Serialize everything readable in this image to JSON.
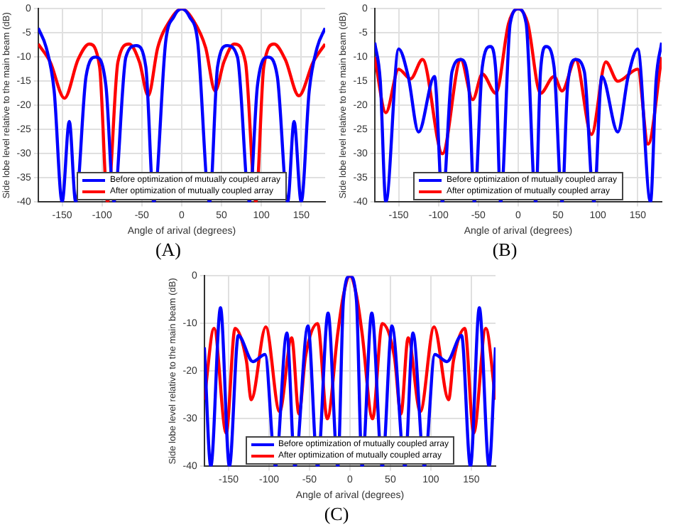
{
  "chart_data": [
    {
      "type": "line",
      "xlabel": "Angle of arival (degrees)",
      "ylabel": "Side lobe level relative to the main beam (dB)",
      "annotations": [
        "(A)"
      ],
      "xlim": [
        -180,
        180
      ],
      "ylim": [
        -40,
        0
      ],
      "xticks": [
        -150,
        -100,
        -50,
        0,
        50,
        100,
        150
      ],
      "yticks": [
        -40,
        -35,
        -30,
        -25,
        -20,
        -15,
        -10,
        -5,
        0
      ],
      "grid": true,
      "legend": "bottom",
      "marker": "none",
      "line_style": "solid",
      "series": [
        {
          "name": "Before optimization of mutually coupled array",
          "color": "#0000ff",
          "x": [
            -180,
            -170,
            -160,
            -150,
            -141,
            -133,
            -120,
            -108,
            -95,
            -85,
            -70,
            -57,
            -45,
            -35,
            -20,
            -10,
            0,
            10,
            20,
            35,
            45,
            57,
            70,
            85,
            95,
            108,
            120,
            133,
            141,
            150,
            160,
            170,
            180
          ],
          "values": [
            -4,
            -8,
            -17,
            -40,
            -23.3,
            -40,
            -14,
            -10,
            -16,
            -40,
            -10,
            -7.6,
            -12,
            -40,
            -6.7,
            -1.7,
            0,
            -1.7,
            -6.7,
            -40,
            -12,
            -7.6,
            -10,
            -40,
            -16,
            -10,
            -14,
            -40,
            -23.3,
            -40,
            -17,
            -8,
            -4
          ]
        },
        {
          "name": "After optimization of mutually coupled array",
          "color": "#ff0000",
          "x": [
            -180,
            -165,
            -147,
            -130,
            -116,
            -103,
            -93,
            -80,
            -66,
            -53,
            -42,
            -30,
            -15,
            0,
            15,
            30,
            42,
            53,
            66,
            80,
            93,
            103,
            116,
            130,
            147,
            165,
            180
          ],
          "values": [
            -7.3,
            -11,
            -18.5,
            -10.5,
            -7.3,
            -12,
            -40,
            -11,
            -7.3,
            -11,
            -18,
            -8,
            -2.5,
            0,
            -2.5,
            -8,
            -17,
            -11,
            -7.3,
            -11,
            -40,
            -12,
            -7.3,
            -10.5,
            -18,
            -11,
            -7.3
          ]
        }
      ]
    },
    {
      "type": "line",
      "xlabel": "Angle of arival (degrees)",
      "ylabel": "Side lobe level relative to the main beam (dB)",
      "annotations": [
        "(B)"
      ],
      "xlim": [
        -180,
        180
      ],
      "ylim": [
        -40,
        0
      ],
      "xticks": [
        -150,
        -100,
        -50,
        0,
        50,
        100,
        150
      ],
      "yticks": [
        -40,
        -35,
        -30,
        -25,
        -20,
        -15,
        -10,
        -5,
        0
      ],
      "grid": true,
      "legend": "bottom",
      "marker": "none",
      "line_style": "solid",
      "series": [
        {
          "name": "Before optimization of mutually coupled array",
          "color": "#0000ff",
          "x": [
            -180,
            -173,
            -166,
            -150,
            -138,
            -125,
            -105,
            -95,
            -83,
            -72,
            -62,
            -55,
            -45,
            -35,
            -28,
            -22,
            -10,
            0,
            10,
            22,
            28,
            35,
            45,
            55,
            62,
            72,
            83,
            95,
            105,
            125,
            138,
            150,
            166,
            173,
            180
          ],
          "values": [
            -7,
            -15,
            -40,
            -8.3,
            -14,
            -25.5,
            -14,
            -40,
            -13,
            -10.5,
            -16,
            -40,
            -12,
            -7.8,
            -13,
            -40,
            -3,
            0,
            -3,
            -40,
            -13,
            -7.8,
            -12,
            -40,
            -16,
            -10.5,
            -13,
            -40,
            -14,
            -25.5,
            -14,
            -8.3,
            -40,
            -15,
            -7
          ]
        },
        {
          "name": "After optimization of mutually coupled array",
          "color": "#ff0000",
          "x": [
            -180,
            -166,
            -150,
            -135,
            -120,
            -95,
            -72,
            -57,
            -45,
            -28,
            -12,
            0,
            12,
            28,
            45,
            55,
            72,
            92,
            110,
            125,
            150,
            163,
            180
          ],
          "values": [
            -10,
            -21.5,
            -12.5,
            -14.5,
            -10.5,
            -30,
            -10.5,
            -18.8,
            -13.5,
            -17.5,
            -3,
            0,
            -3,
            -17.5,
            -14,
            -17,
            -10.5,
            -26,
            -11,
            -15,
            -12.5,
            -28,
            -10
          ]
        }
      ]
    },
    {
      "type": "line",
      "xlabel": "Angle of arival (degrees)",
      "ylabel": "Side lobe level relative to the main beam (dB)",
      "annotations": [
        "(C)"
      ],
      "xlim": [
        -180,
        180
      ],
      "ylim": [
        -40,
        0
      ],
      "xticks": [
        -150,
        -100,
        -50,
        0,
        50,
        100,
        150
      ],
      "yticks": [
        -40,
        -30,
        -20,
        -10,
        0
      ],
      "grid": true,
      "legend": "bottom",
      "marker": "none",
      "line_style": "solid",
      "series": [
        {
          "name": "Before optimization of mutually coupled array",
          "color": "#0000ff",
          "x": [
            -180,
            -172,
            -160,
            -149,
            -138,
            -120,
            -105,
            -92,
            -78,
            -68,
            -52,
            -40,
            -27,
            -15,
            -8,
            0,
            8,
            15,
            27,
            40,
            52,
            68,
            78,
            92,
            105,
            120,
            138,
            149,
            160,
            172,
            180
          ],
          "values": [
            -15,
            -40,
            -6.7,
            -40,
            -12.5,
            -18,
            -16.5,
            -40,
            -12,
            -40,
            -10.5,
            -40,
            -7.8,
            -40,
            -5,
            0,
            -5,
            -40,
            -7.8,
            -40,
            -10.5,
            -40,
            -12,
            -40,
            -16.5,
            -18,
            -12.5,
            -40,
            -6.7,
            -40,
            -15
          ]
        },
        {
          "name": "After optimization of mutually coupled array",
          "color": "#ff0000",
          "x": [
            -180,
            -168,
            -153,
            -142,
            -128,
            -122,
            -104,
            -87,
            -72,
            -63,
            -55,
            -40,
            -28,
            -15,
            -8,
            0,
            8,
            15,
            28,
            40,
            55,
            63,
            72,
            87,
            104,
            122,
            128,
            142,
            153,
            168,
            180
          ],
          "values": [
            -26,
            -11,
            -33,
            -11,
            -17.8,
            -26,
            -10.7,
            -28.5,
            -13,
            -29,
            -17,
            -10,
            -30,
            -12,
            -4,
            0,
            -4,
            -12,
            -30,
            -10,
            -17,
            -29,
            -13,
            -28.5,
            -10.7,
            -26,
            -17.8,
            -11,
            -33,
            -11,
            -26
          ]
        }
      ]
    }
  ]
}
